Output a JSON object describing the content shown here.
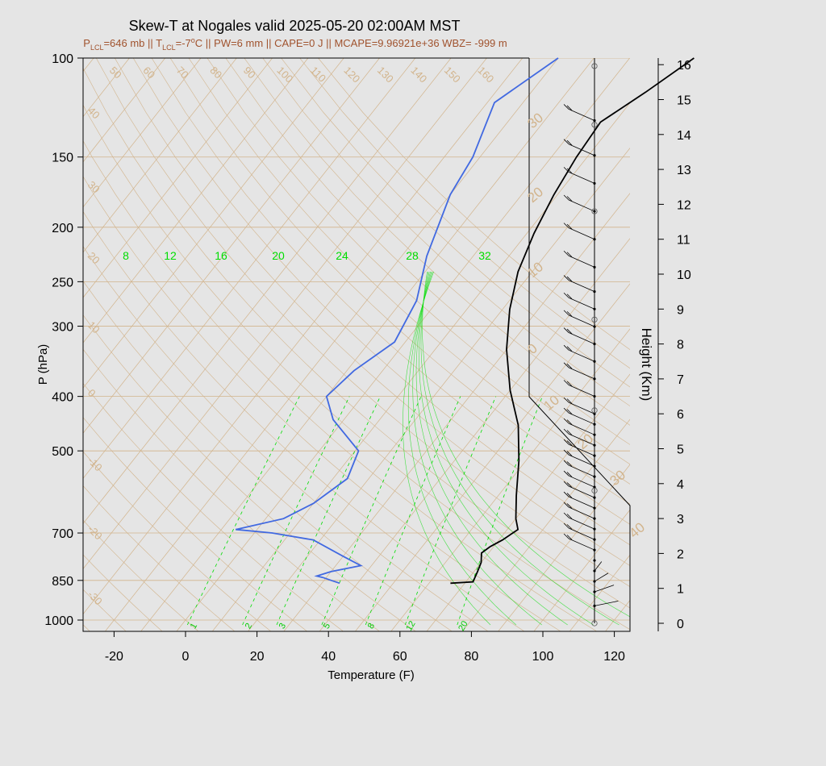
{
  "title": "Skew-T at Nogales valid 2025-05-20 02:00AM MST",
  "subtitle": {
    "p_lcl": "P",
    "p_lcl_sub": "LCL",
    "p_lcl_val": "=646 mb || T",
    "t_lcl_sub": "LCL",
    "t_lcl_val": "=-7",
    "t_unit": "o",
    "rest": "C || PW=6 mm || CAPE=0 J || MCAPE=9.96921e+36 WBZ= -999 m"
  },
  "colors": {
    "temperature": "#000000",
    "dewpoint": "#4169e1",
    "isotherm": "#d2b48c",
    "mixing_ratio": "#00dd00",
    "axis": "#000000"
  },
  "chart_data": {
    "type": "line",
    "title": "Skew-T at Nogales valid 2025-05-20 02:00AM MST",
    "xlabel": "Temperature (F)",
    "ylabel": "P (hPa)",
    "y2label": "Height (Km)",
    "x_ticks": [
      "-20",
      "0",
      "20",
      "40",
      "60",
      "80",
      "100",
      "120"
    ],
    "y_ticks": [
      "100",
      "150",
      "200",
      "250",
      "300",
      "400",
      "500",
      "700",
      "850",
      "1000"
    ],
    "height_ticks": [
      "0",
      "1",
      "2",
      "3",
      "4",
      "5",
      "6",
      "7",
      "8",
      "9",
      "10",
      "11",
      "12",
      "13",
      "14",
      "15",
      "16"
    ],
    "xlim": [
      -28,
      125
    ],
    "ylim": [
      1020,
      100
    ],
    "y_scale": "log",
    "isotherm_labels_top": [
      "50",
      "60",
      "70",
      "80",
      "90",
      "100",
      "110",
      "120",
      "130",
      "140",
      "150",
      "160"
    ],
    "isotherm_labels_left": [
      "40",
      "30",
      "20",
      "10",
      "0",
      "-10",
      "-20",
      "-30"
    ],
    "isotherm_labels_right": [
      "30",
      "20",
      "10",
      "0",
      "10",
      "20",
      "30",
      "40"
    ],
    "mixing_ratio_labels_top": [
      "8",
      "12",
      "16",
      "20",
      "24",
      "28",
      "32"
    ],
    "mixing_ratio_labels_bottom": [
      "1",
      "2",
      "3",
      "5",
      "8",
      "12",
      "20"
    ],
    "series": [
      {
        "name": "Temperature",
        "points": [
          [
            66,
            860
          ],
          [
            72,
            855
          ],
          [
            71,
            820
          ],
          [
            70,
            790
          ],
          [
            68,
            760
          ],
          [
            69,
            740
          ],
          [
            71,
            720
          ],
          [
            73,
            690
          ],
          [
            70,
            660
          ],
          [
            65,
            600
          ],
          [
            58,
            520
          ],
          [
            50,
            450
          ],
          [
            40,
            390
          ],
          [
            30,
            330
          ],
          [
            22,
            280
          ],
          [
            16,
            240
          ],
          [
            12,
            205
          ],
          [
            9,
            175
          ],
          [
            7,
            150
          ],
          [
            6,
            130
          ],
          [
            12,
            115
          ],
          [
            18,
            100
          ]
        ]
      },
      {
        "name": "Dewpoint",
        "points": [
          [
            35,
            860
          ],
          [
            32,
            850
          ],
          [
            29,
            840
          ],
          [
            27,
            835
          ],
          [
            30,
            820
          ],
          [
            37,
            800
          ],
          [
            30,
            770
          ],
          [
            18,
            720
          ],
          [
            5,
            700
          ],
          [
            -6,
            690
          ],
          [
            5,
            660
          ],
          [
            10,
            620
          ],
          [
            14,
            560
          ],
          [
            11,
            500
          ],
          [
            -3,
            440
          ],
          [
            -10,
            400
          ],
          [
            -8,
            360
          ],
          [
            -3,
            320
          ],
          [
            -6,
            270
          ],
          [
            -13,
            225
          ],
          [
            -20,
            175
          ],
          [
            -22,
            150
          ],
          [
            -28,
            120
          ],
          [
            -20,
            100
          ]
        ]
      }
    ],
    "wind_barbs_heights_km": [
      0.5,
      0.9,
      1.2,
      1.5,
      1.8,
      2.1,
      2.4,
      2.7,
      3.0,
      3.3,
      3.6,
      3.9,
      4.2,
      4.5,
      4.8,
      5.1,
      5.4,
      5.7,
      6.0,
      6.5,
      7.0,
      7.5,
      8.0,
      8.5,
      9.0,
      9.5,
      10.2,
      11.0,
      11.8,
      12.6,
      13.4,
      14.4
    ]
  }
}
